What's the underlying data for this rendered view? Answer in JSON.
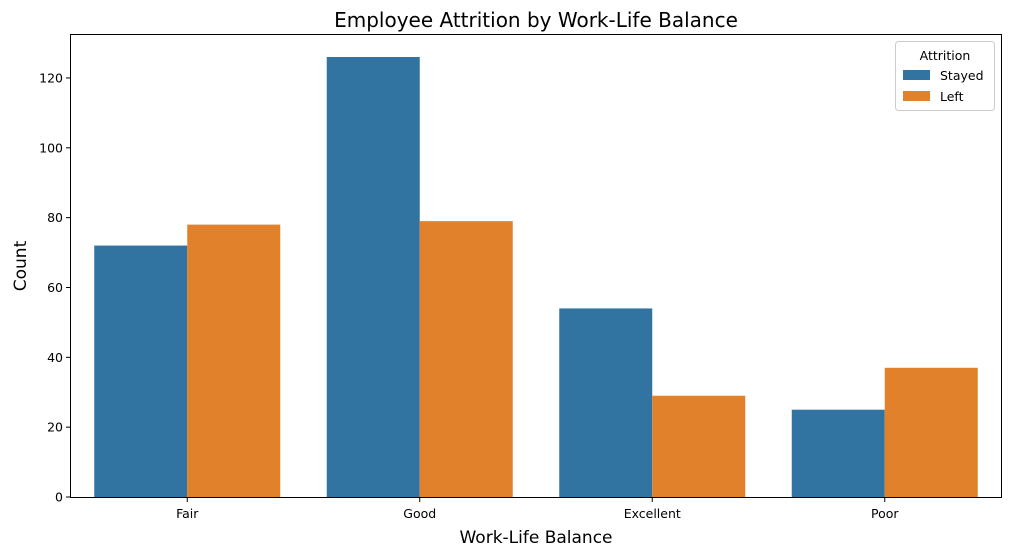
{
  "chart_data": {
    "type": "bar",
    "title": "Employee Attrition by Work-Life Balance",
    "xlabel": "Work-Life Balance",
    "ylabel": "Count",
    "categories": [
      "Fair",
      "Good",
      "Excellent",
      "Poor"
    ],
    "series": [
      {
        "name": "Stayed",
        "values": [
          72,
          126,
          54,
          25
        ],
        "color": "#3274a1"
      },
      {
        "name": "Left",
        "values": [
          78,
          79,
          29,
          37
        ],
        "color": "#e1812c"
      }
    ],
    "ylim": [
      0,
      132.3
    ],
    "yticks": [
      0,
      20,
      40,
      60,
      80,
      100,
      120
    ],
    "grid": false,
    "legend": {
      "title": "Attrition",
      "placement": "top-right"
    }
  }
}
